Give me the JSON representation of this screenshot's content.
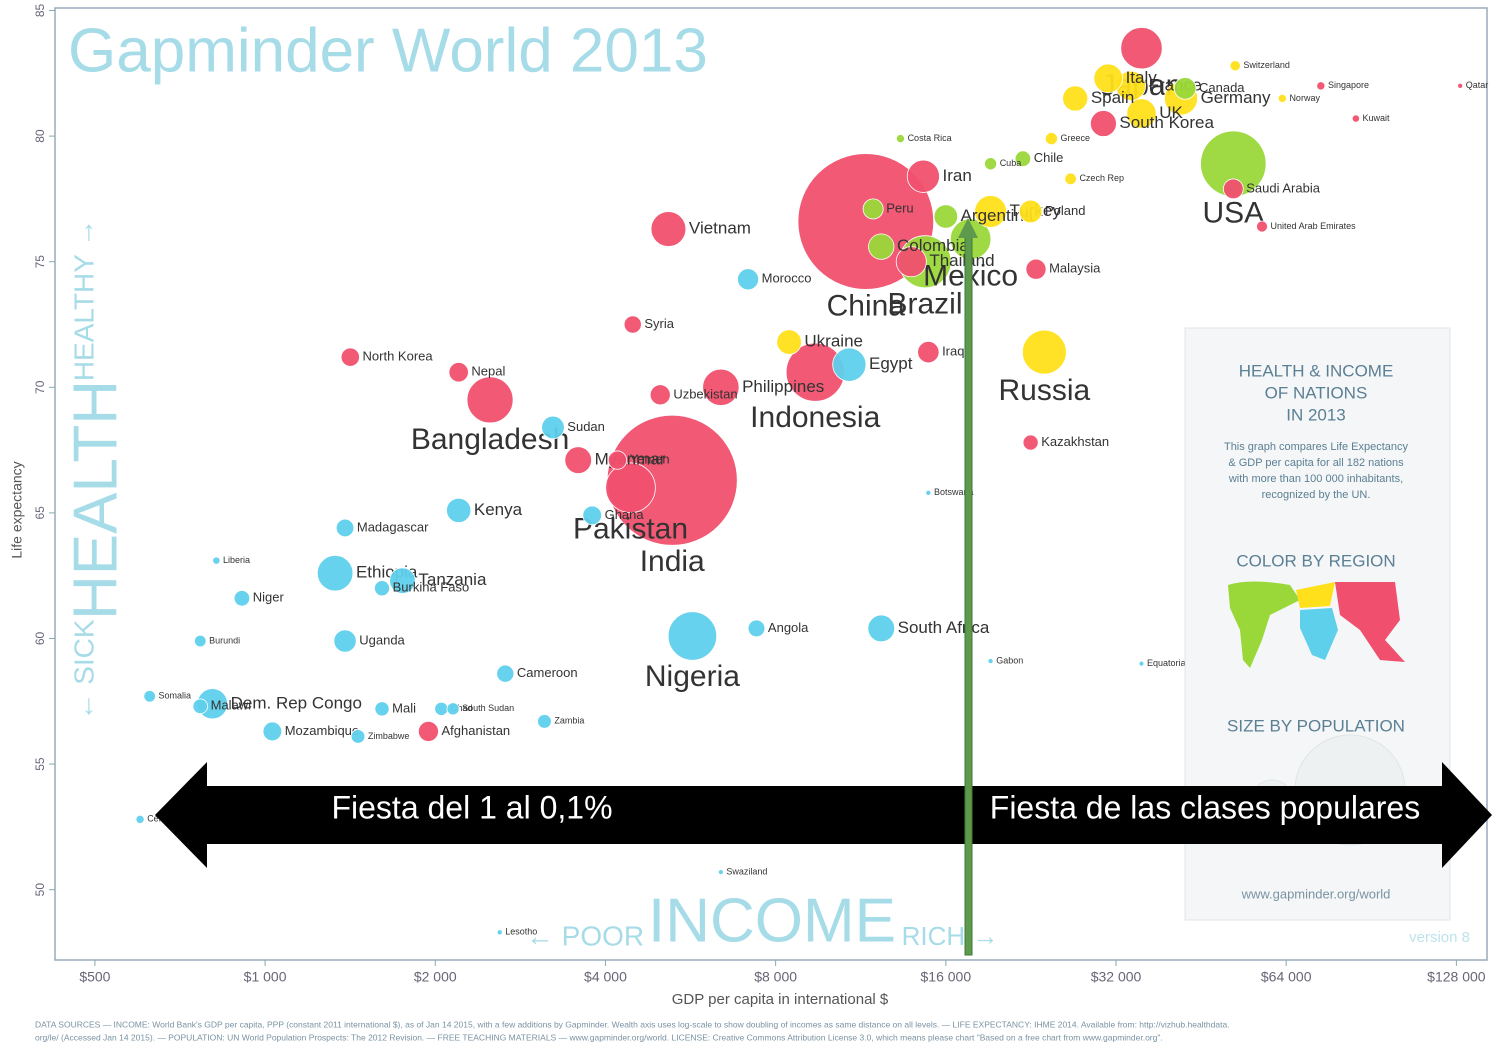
{
  "chart_data": {
    "type": "bubble",
    "title": "Gapminder World 2013",
    "x_label": "GDP per capita in international $",
    "y_label": "Life expectancy",
    "log_x": true,
    "xlim": [
      425,
      145000
    ],
    "ylim": [
      47.2,
      85.1
    ],
    "xticks": [
      {
        "value": 500,
        "label": "$500"
      },
      {
        "value": 1000,
        "label": "$1 000"
      },
      {
        "value": 2000,
        "label": "$2 000"
      },
      {
        "value": 4000,
        "label": "$4 000"
      },
      {
        "value": 8000,
        "label": "$8 000"
      },
      {
        "value": 16000,
        "label": "$16 000"
      },
      {
        "value": 32000,
        "label": "$32 000"
      },
      {
        "value": 64000,
        "label": "$64 000"
      },
      {
        "value": 128000,
        "label": "$128 000"
      }
    ],
    "yticks": [
      50,
      55,
      60,
      65,
      70,
      75,
      80,
      85
    ],
    "series": [
      {
        "color": "#f0506e",
        "labels": [
          "China",
          "India",
          "Japan",
          "Indonesia",
          "Pakistan",
          "Bangladesh",
          "Vietnam",
          "Philippines",
          "Iran",
          "Thailand",
          "South Korea",
          "Saudi Arabia",
          "Myanmar",
          "Afghanistan",
          "North Korea",
          "Iraq",
          "Kazakhstan",
          "Yemen",
          "Uzbekistan",
          "Nepal",
          "Syria",
          "Malaysia",
          "Qatar",
          "Singapore",
          "Kuwait",
          "United Arab Emirates"
        ],
        "x": [
          11550,
          5250,
          35500,
          9400,
          4430,
          2500,
          5170,
          6400,
          14600,
          13900,
          30400,
          51600,
          3580,
          1945,
          1415,
          14900,
          22600,
          4200,
          5000,
          2200,
          4470,
          23100,
          130000,
          73700,
          85000,
          58000
        ],
        "values": [
          76.6,
          66.3,
          83.5,
          70.6,
          66.0,
          69.5,
          76.3,
          70.0,
          78.4,
          75.0,
          80.5,
          77.9,
          67.1,
          56.3,
          71.2,
          71.4,
          67.8,
          67.1,
          69.7,
          70.6,
          72.5,
          74.7,
          82.0,
          82.0,
          80.7,
          76.4
        ],
        "sizes": [
          1360,
          1250,
          127,
          250,
          182,
          157,
          90,
          98,
          77,
          67,
          50,
          29,
          53,
          30,
          25,
          34,
          17,
          25,
          30,
          28,
          22,
          30,
          2,
          5,
          4,
          9
        ]
      },
      {
        "color": "#ffe01a",
        "labels": [
          "Russia",
          "Germany",
          "UK",
          "France",
          "Italy",
          "Spain",
          "Poland",
          "Turkey",
          "Ukraine",
          "Czech Rep",
          "Switzerland",
          "Norway",
          "Greece"
        ],
        "x": [
          23900,
          41700,
          35500,
          34000,
          31000,
          27100,
          22600,
          19200,
          8450,
          26600,
          52000,
          63000,
          24600
        ],
        "values": [
          71.4,
          81.5,
          80.9,
          82.0,
          82.3,
          81.5,
          77.0,
          77.0,
          71.8,
          78.3,
          82.8,
          81.5,
          79.9
        ],
        "sizes": [
          143,
          81,
          64,
          64,
          61,
          47,
          38,
          75,
          45,
          10,
          8,
          5,
          11
        ]
      },
      {
        "color": "#9ad83a",
        "labels": [
          "USA",
          "Brazil",
          "Mexico",
          "Colombia",
          "Argentina",
          "Canada",
          "Peru",
          "Chile",
          "Cuba",
          "Costa Rica"
        ],
        "x": [
          51600,
          14700,
          17700,
          12300,
          16000,
          42400,
          11900,
          21900,
          19200,
          13300
        ],
        "values": [
          78.9,
          75.0,
          75.9,
          75.6,
          76.8,
          81.9,
          77.1,
          79.1,
          78.9,
          79.9
        ],
        "sizes": [
          317,
          200,
          122,
          48,
          41,
          35,
          30,
          18,
          11,
          5
        ]
      },
      {
        "color": "#5ed0ec",
        "labels": [
          "Nigeria",
          "Ethiopia",
          "Dem. Rep Congo",
          "Egypt",
          "South Africa",
          "Tanzania",
          "Kenya",
          "Sudan",
          "Uganda",
          "Morocco",
          "Ghana",
          "Mozambique",
          "Madagascar",
          "Cameroon",
          "Angola",
          "Burkina Faso",
          "Niger",
          "Malawi",
          "Zambia",
          "Zimbabwe",
          "Chad",
          "Mali",
          "South Sudan",
          "Somalia",
          "Lesotho",
          "Swaziland",
          "Central African Rep.",
          "Botswana",
          "Gabon",
          "Equatorial Guinea",
          "Liberia",
          "Burundi"
        ],
        "x": [
          5700,
          1330,
          807,
          10800,
          12300,
          1750,
          2200,
          3230,
          1385,
          7150,
          3790,
          1030,
          1385,
          2660,
          7400,
          1610,
          910,
          768,
          3120,
          1460,
          2050,
          1610,
          2150,
          625,
          2600,
          6400,
          601,
          14900,
          19200,
          35500,
          820,
          768
        ],
        "values": [
          60.1,
          62.6,
          57.4,
          70.9,
          60.4,
          62.3,
          65.1,
          68.4,
          59.9,
          74.3,
          64.9,
          56.3,
          64.4,
          58.6,
          60.4,
          62.0,
          61.6,
          57.3,
          56.7,
          56.1,
          57.2,
          57.2,
          57.2,
          57.7,
          48.3,
          50.7,
          52.8,
          65.8,
          59.1,
          59.0,
          63.1,
          59.9
        ],
        "sizes": [
          174,
          94,
          68,
          82,
          53,
          49,
          44,
          38,
          37,
          33,
          26,
          26,
          23,
          22,
          21,
          17,
          18,
          16,
          14,
          14,
          13,
          15,
          11,
          10,
          2,
          1,
          5,
          2,
          2,
          1,
          4,
          10
        ]
      }
    ],
    "axis_words": {
      "income": "INCOME",
      "poor": "← POOR",
      "rich": "RICH →",
      "health": "HEALTH",
      "healthy": "HEALTHY →",
      "sick": "← SICK"
    },
    "version": "version 8",
    "info_box": {
      "title_lines": [
        "HEALTH & INCOME",
        "OF NATIONS",
        "IN 2013"
      ],
      "text_lines": [
        "This graph compares Life Expectancy",
        "& GDP per capita for all 182 nations",
        "with more than 100 000 inhabitants,",
        "recognized by the UN."
      ],
      "color_heading": "COLOR BY REGION",
      "size_heading": "SIZE BY POPULATION",
      "url": "www.gapminder.org/world"
    },
    "annotations": {
      "left": "Fiesta del 1 al 0,1%",
      "right": "Fiesta de las clases populares"
    },
    "footer": [
      "DATA SOURCES — INCOME: World Bank's GDP per capita, PPP (constant 2011 international $), as of Jan 14 2015, with a few additions by Gapminder. Wealth axis uses log-scale to show doubling of incomes as same distance on all levels. — LIFE EXPECTANCY: IHME 2014. Available from: http://vizhub.healthdata.",
      "org/le/ (Accessed Jan 14 2015). — POPULATION: UN World Population Prospects: The 2012 Revision. — FREE TEACHING MATERIALS — www.gapminder.org/world. LICENSE: Creative Commons Attribution License 3.0, which means please chart \"Based on a free chart from www.gapminder.org\"."
    ]
  }
}
